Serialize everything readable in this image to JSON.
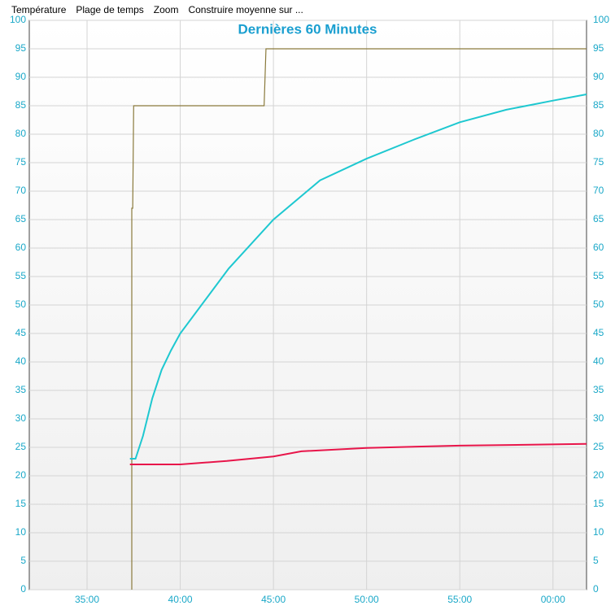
{
  "menu": [
    "Température",
    "Plage de temps",
    "Zoom",
    "Construire moyenne sur ..."
  ],
  "chart_data": {
    "type": "line",
    "title": "Dernières 60 Minutes",
    "xlim": [
      31.9,
      61.8
    ],
    "xticks": [
      {
        "value": 35,
        "label": "35:00"
      },
      {
        "value": 40,
        "label": "40:00"
      },
      {
        "value": 45,
        "label": "45:00"
      },
      {
        "value": 50,
        "label": "50:00"
      },
      {
        "value": 55,
        "label": "55:00"
      },
      {
        "value": 60,
        "label": "00:00"
      }
    ],
    "ylim": [
      0,
      100
    ],
    "yticks": [
      0,
      5,
      10,
      15,
      20,
      25,
      30,
      35,
      40,
      45,
      50,
      55,
      60,
      65,
      70,
      75,
      80,
      85,
      90,
      95,
      100
    ],
    "grid": true,
    "series": [
      {
        "color": "#8a7a3c",
        "x": [
          37.4,
          37.4,
          37.45,
          37.5,
          44.5,
          44.6,
          61.8
        ],
        "values": [
          0,
          67,
          67,
          85,
          85,
          95,
          95
        ]
      },
      {
        "color": "#1ec8d0",
        "x": [
          37.3,
          37.6,
          38,
          38.5,
          39,
          39.5,
          40,
          42.6,
          45,
          47.5,
          50,
          52.5,
          55,
          57.5,
          60,
          61.8
        ],
        "values": [
          23,
          23,
          27,
          33.6,
          38.6,
          42,
          45,
          56.4,
          65,
          71.9,
          75.7,
          79,
          82.1,
          84.3,
          85.9,
          87
        ]
      },
      {
        "color": "#e8154a",
        "x": [
          37.3,
          40,
          42.5,
          45,
          46.5,
          50,
          55,
          61.8
        ],
        "values": [
          22,
          22,
          22.6,
          23.4,
          24.3,
          24.9,
          25.3,
          25.6
        ]
      }
    ]
  }
}
